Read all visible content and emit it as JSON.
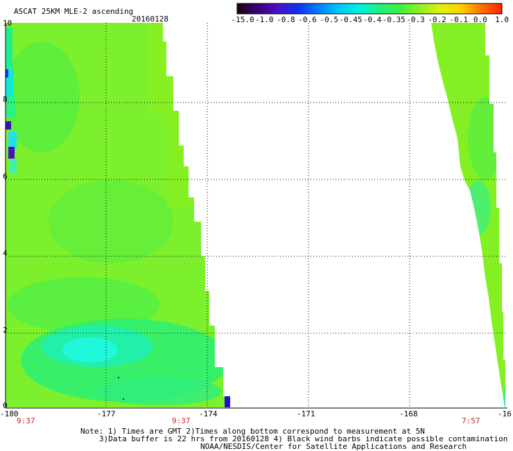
{
  "header": {
    "product": "ASCAT 25KM MLE-2 ascending",
    "date": "20160128"
  },
  "colorbar": {
    "labels": [
      "-15.0",
      "-1.0",
      "-0.8",
      "-0.6",
      "-0.5",
      "-0.45",
      "-0.4",
      "-0.35",
      "-0.3",
      "-0.2",
      "-0.1",
      "0.0",
      "1.0"
    ],
    "colors": [
      "#1a0010",
      "#3a0078",
      "#4a10c8",
      "#1030f0",
      "#0080ff",
      "#00c8ff",
      "#00f0e0",
      "#20f080",
      "#40f040",
      "#90f020",
      "#e0f010",
      "#ffd000",
      "#ff7000",
      "#ff2000"
    ]
  },
  "map": {
    "lat_labels": [
      "10",
      "8",
      "6",
      "4",
      "2",
      "0"
    ],
    "lon_labels": [
      "-180",
      "-177",
      "-174",
      "-171",
      "-168",
      "-16"
    ],
    "time_labels": [
      "9:37",
      "9:37",
      "7:57"
    ]
  },
  "footer": {
    "line1": "Note: 1) Times are GMT 2)Times along bottom correspond to measurement at 5N",
    "line2": "3)Data buffer is 22 hrs from 20160128 4) Black wind barbs indicate possible contamination",
    "line3": "NOAA/NESDIS/Center for Satellite Applications and Research"
  }
}
